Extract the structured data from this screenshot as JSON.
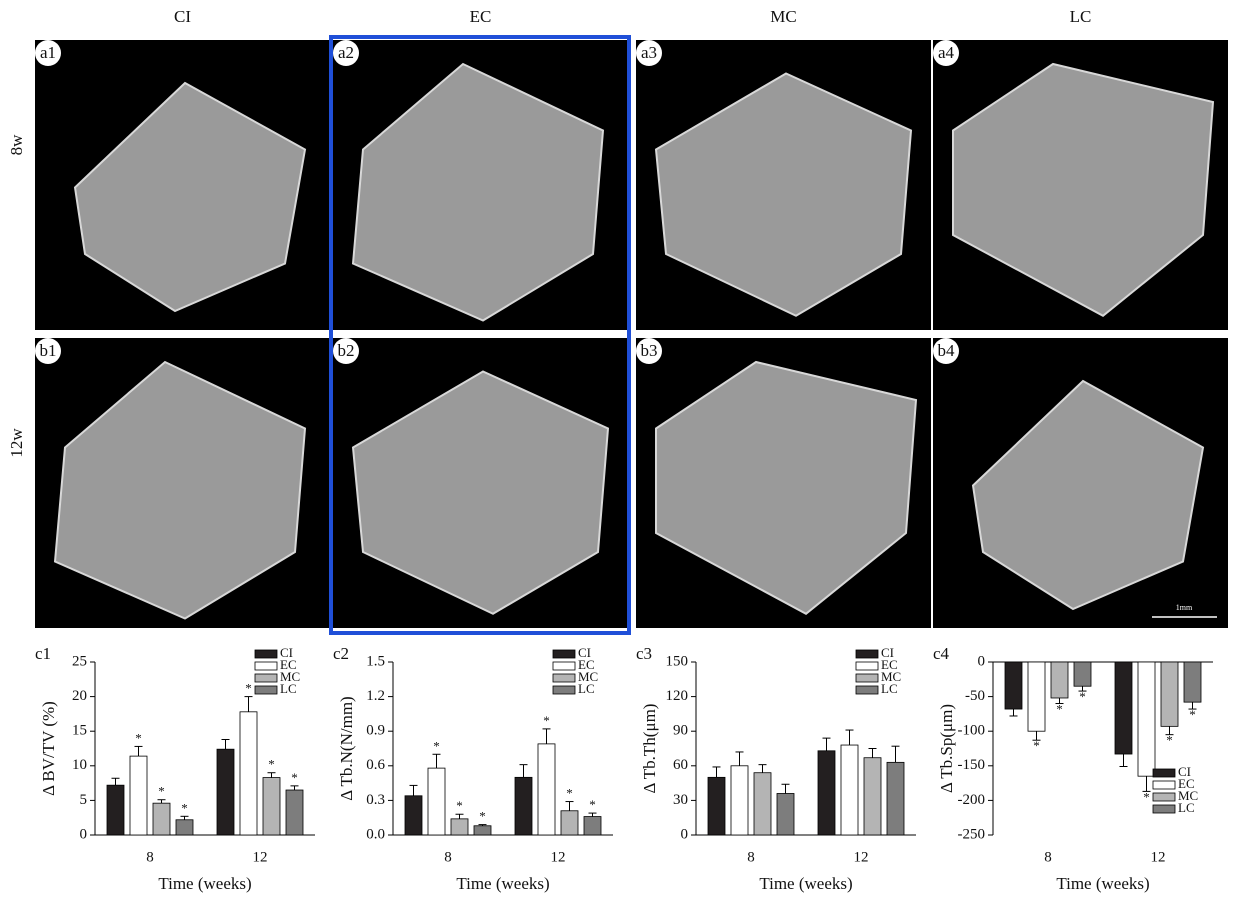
{
  "figure": {
    "columns": [
      "CI",
      "EC",
      "MC",
      "LC"
    ],
    "rows": [
      "8w",
      "12w"
    ],
    "image_labels": [
      [
        "a1",
        "a2",
        "a3",
        "a4"
      ],
      [
        "b1",
        "b2",
        "b3",
        "b4"
      ]
    ],
    "scale_bar": "1mm"
  },
  "chart_data": [
    {
      "type": "bar",
      "panel": "c1",
      "y_label": "Δ BV/TV (%)",
      "x_label": "Time (weeks)",
      "categories": [
        "8",
        "12"
      ],
      "ylim": [
        0,
        25
      ],
      "yticks": [
        0,
        5,
        10,
        15,
        20,
        25
      ],
      "legend": "upper right",
      "series": [
        {
          "name": "CI",
          "color": "#231f20",
          "values": [
            7.2,
            12.4
          ],
          "errors": [
            1.0,
            1.4
          ],
          "markers": [
            null,
            null
          ]
        },
        {
          "name": "EC",
          "color": "#ffffff",
          "values": [
            11.4,
            17.8
          ],
          "errors": [
            1.4,
            2.2
          ],
          "markers": [
            "*",
            "*"
          ]
        },
        {
          "name": "MC",
          "color": "#b4b4b4",
          "values": [
            4.6,
            8.3
          ],
          "errors": [
            0.5,
            0.7
          ],
          "markers": [
            "*",
            "*"
          ]
        },
        {
          "name": "LC",
          "color": "#7d7d7d",
          "values": [
            2.2,
            6.5
          ],
          "errors": [
            0.5,
            0.6
          ],
          "markers": [
            "*",
            "*"
          ]
        }
      ]
    },
    {
      "type": "bar",
      "panel": "c2",
      "y_label": "Δ Tb.N(N/mm)",
      "x_label": "Time (weeks)",
      "categories": [
        "8",
        "12"
      ],
      "ylim": [
        0,
        1.5
      ],
      "yticks": [
        {
          "value": 0,
          "label": "0.0"
        },
        0.3,
        0.6,
        0.9,
        1.2,
        1.5
      ],
      "legend": "upper right",
      "series": [
        {
          "name": "CI",
          "color": "#231f20",
          "values": [
            0.34,
            0.5
          ],
          "errors": [
            0.09,
            0.11
          ],
          "markers": [
            null,
            null
          ]
        },
        {
          "name": "EC",
          "color": "#ffffff",
          "values": [
            0.58,
            0.79
          ],
          "errors": [
            0.12,
            0.13
          ],
          "markers": [
            "*",
            "*"
          ]
        },
        {
          "name": "MC",
          "color": "#b4b4b4",
          "values": [
            0.14,
            0.21
          ],
          "errors": [
            0.04,
            0.08
          ],
          "markers": [
            "*",
            "*"
          ]
        },
        {
          "name": "LC",
          "color": "#7d7d7d",
          "values": [
            0.08,
            0.16
          ],
          "errors": [
            0.01,
            0.03
          ],
          "markers": [
            "*",
            "*"
          ]
        }
      ]
    },
    {
      "type": "bar",
      "panel": "c3",
      "y_label": "Δ Tb.Th(μm)",
      "x_label": "Time (weeks)",
      "categories": [
        "8",
        "12"
      ],
      "ylim": [
        0,
        150
      ],
      "yticks": [
        0,
        30,
        60,
        90,
        120,
        150
      ],
      "legend": "upper right",
      "series": [
        {
          "name": "CI",
          "color": "#231f20",
          "values": [
            50,
            73
          ],
          "errors": [
            9,
            11
          ],
          "markers": [
            null,
            null
          ]
        },
        {
          "name": "EC",
          "color": "#ffffff",
          "values": [
            60,
            78
          ],
          "errors": [
            12,
            13
          ],
          "markers": [
            null,
            null
          ]
        },
        {
          "name": "MC",
          "color": "#b4b4b4",
          "values": [
            54,
            67
          ],
          "errors": [
            7,
            8
          ],
          "markers": [
            null,
            null
          ]
        },
        {
          "name": "LC",
          "color": "#7d7d7d",
          "values": [
            36,
            63
          ],
          "errors": [
            8,
            14
          ],
          "markers": [
            null,
            null
          ]
        }
      ]
    },
    {
      "type": "bar",
      "panel": "c4",
      "y_label": "Δ Tb.Sp(μm)",
      "x_label": "Time (weeks)",
      "categories": [
        "8",
        "12"
      ],
      "ylim": [
        -250,
        0
      ],
      "yticks": [
        -250,
        -200,
        -150,
        -100,
        -50,
        0
      ],
      "legend": "lower right",
      "series": [
        {
          "name": "CI",
          "color": "#231f20",
          "values": [
            -68,
            -133
          ],
          "errors": [
            10,
            18
          ],
          "markers": [
            null,
            null
          ]
        },
        {
          "name": "EC",
          "color": "#ffffff",
          "values": [
            -100,
            -165
          ],
          "errors": [
            13,
            22
          ],
          "markers": [
            "*",
            "*"
          ]
        },
        {
          "name": "MC",
          "color": "#b4b4b4",
          "values": [
            -52,
            -93
          ],
          "errors": [
            8,
            12
          ],
          "markers": [
            "*",
            "*"
          ]
        },
        {
          "name": "LC",
          "color": "#7d7d7d",
          "values": [
            -35,
            -58
          ],
          "errors": [
            7,
            10
          ],
          "markers": [
            "*",
            "*"
          ]
        }
      ]
    }
  ]
}
